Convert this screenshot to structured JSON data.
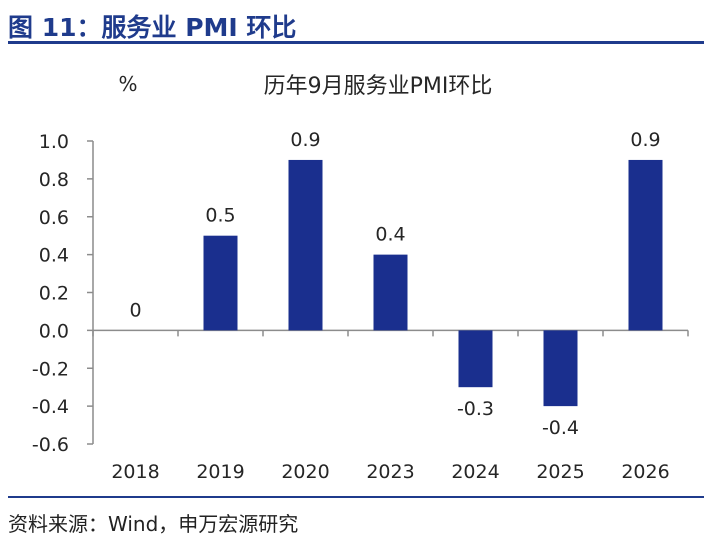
{
  "header": {
    "title": "图 11：服务业 PMI 环比"
  },
  "footer": {
    "source": "资料来源：Wind，申万宏源研究"
  },
  "colors": {
    "accent": "#1f3b8c",
    "bar": "#1a2f8e",
    "axis": "#8c8c8c"
  },
  "chart_data": {
    "type": "bar",
    "title": "历年9月服务业PMI环比",
    "ylabel": "%",
    "xlabel": "",
    "categories": [
      "2018",
      "2019",
      "2020",
      "2023",
      "2024",
      "2025",
      "2026"
    ],
    "values": [
      0,
      0.5,
      0.9,
      0.4,
      -0.3,
      -0.4,
      0.9
    ],
    "data_labels": [
      "0",
      "0.5",
      "0.9",
      "0.4",
      "-0.3",
      "-0.4",
      "0.9"
    ],
    "ylim": [
      -0.6,
      1.0
    ],
    "yticks": [
      1.0,
      0.8,
      0.6,
      0.4,
      0.2,
      0.0,
      -0.2,
      -0.4,
      -0.6
    ],
    "ytick_labels": [
      "1.0",
      "0.8",
      "0.6",
      "0.4",
      "0.2",
      "0.0",
      "-0.2",
      "-0.4",
      "-0.6"
    ],
    "grid": false,
    "legend": "none"
  }
}
